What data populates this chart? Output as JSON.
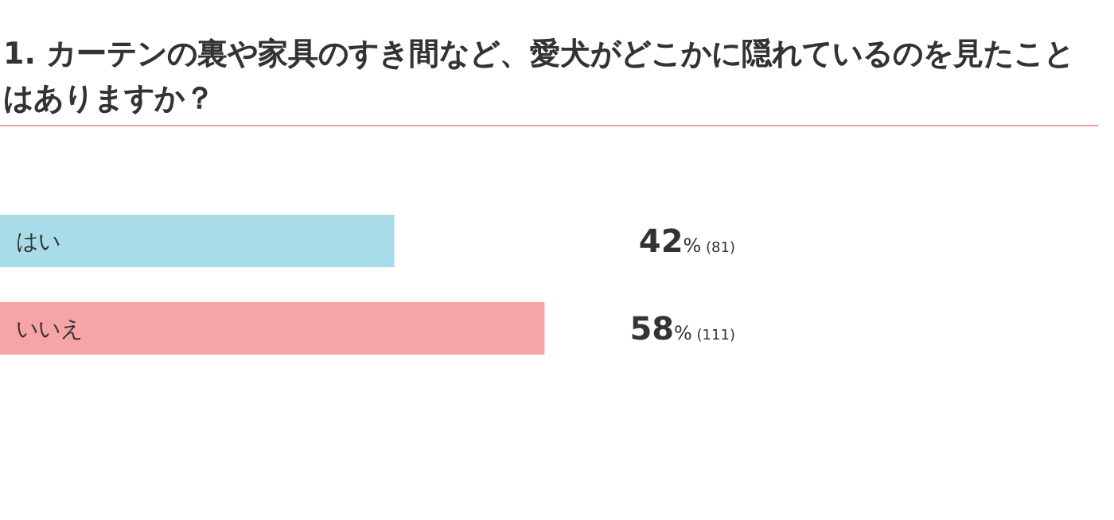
{
  "chart_data": {
    "type": "bar",
    "orientation": "horizontal",
    "title": "1. カーテンの裏や家具のすき間など、愛犬がどこかに隠れているのを見たことはありますか？",
    "categories": [
      "はい",
      "いいえ"
    ],
    "values": [
      42,
      58
    ],
    "colors": [
      "#a8dce8",
      "#f7a4a6"
    ],
    "value_labels": [
      "42% (81)",
      "58% (111)"
    ]
  }
}
